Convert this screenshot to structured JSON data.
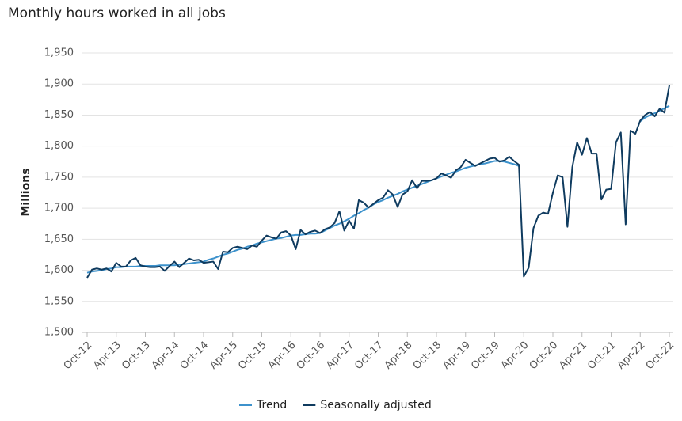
{
  "chart_data": {
    "type": "line",
    "title": "Monthly hours worked in all jobs",
    "y_label": "Millions",
    "categories": [
      "Oct-12",
      null,
      null,
      null,
      null,
      null,
      "Apr-13",
      null,
      null,
      null,
      null,
      null,
      "Oct-13",
      null,
      null,
      null,
      null,
      null,
      "Apr-14",
      null,
      null,
      null,
      null,
      null,
      "Oct-14",
      null,
      null,
      null,
      null,
      null,
      "Apr-15",
      null,
      null,
      null,
      null,
      null,
      "Oct-15",
      null,
      null,
      null,
      null,
      null,
      "Apr-16",
      null,
      null,
      null,
      null,
      null,
      "Oct-16",
      null,
      null,
      null,
      null,
      null,
      "Apr-17",
      null,
      null,
      null,
      null,
      null,
      "Oct-17",
      null,
      null,
      null,
      null,
      null,
      "Apr-18",
      null,
      null,
      null,
      null,
      null,
      "Oct-18",
      null,
      null,
      null,
      null,
      null,
      "Apr-19",
      null,
      null,
      null,
      null,
      null,
      "Oct-19",
      null,
      null,
      null,
      null,
      null,
      "Apr-20",
      null,
      null,
      null,
      null,
      null,
      "Oct-20",
      null,
      null,
      null,
      null,
      null,
      "Apr-21",
      null,
      null,
      null,
      null,
      null,
      "Oct-21",
      null,
      null,
      null,
      null,
      null,
      "Apr-22",
      null,
      null,
      null,
      null,
      null,
      "Oct-22"
    ],
    "series": [
      {
        "name": "Trend",
        "color": "#3d92cc",
        "values": [
          1596,
          1598,
          1599,
          1600,
          1602,
          1603,
          1605,
          1605,
          1606,
          1606,
          1606,
          1607,
          1607,
          1607,
          1607,
          1608,
          1608,
          1608,
          1608,
          1609,
          1610,
          1611,
          1612,
          1613,
          1614,
          1617,
          1619,
          1622,
          1625,
          1627,
          1630,
          1633,
          1635,
          1638,
          1640,
          1643,
          1645,
          1647,
          1649,
          1651,
          1652,
          1654,
          1656,
          1657,
          1657,
          1658,
          1659,
          1659,
          1660,
          1664,
          1668,
          1672,
          1675,
          1679,
          1683,
          1688,
          1692,
          1697,
          1701,
          1706,
          1710,
          1713,
          1717,
          1720,
          1723,
          1727,
          1730,
          1733,
          1736,
          1739,
          1742,
          1745,
          1748,
          1751,
          1754,
          1757,
          1759,
          1762,
          1765,
          1767,
          1769,
          1771,
          1772,
          1774,
          1776,
          1776,
          1775,
          1773,
          1771,
          1768,
          null,
          null,
          null,
          null,
          null,
          null,
          null,
          null,
          null,
          null,
          null,
          null,
          null,
          null,
          null,
          null,
          null,
          null,
          null,
          null,
          null,
          null,
          null,
          null,
          1840,
          1846,
          1850,
          1853,
          1857,
          1861,
          1865
        ]
      },
      {
        "name": "Seasonally adjusted",
        "color": "#0f3b5f",
        "values": [
          1588,
          1601,
          1603,
          1601,
          1603,
          1598,
          1612,
          1606,
          1606,
          1616,
          1620,
          1608,
          1606,
          1605,
          1605,
          1606,
          1599,
          1607,
          1614,
          1605,
          1612,
          1619,
          1616,
          1617,
          1612,
          1613,
          1614,
          1602,
          1630,
          1629,
          1636,
          1638,
          1636,
          1634,
          1640,
          1638,
          1648,
          1656,
          1653,
          1651,
          1661,
          1663,
          1656,
          1634,
          1665,
          1658,
          1662,
          1664,
          1660,
          1666,
          1669,
          1676,
          1695,
          1664,
          1680,
          1667,
          1713,
          1709,
          1701,
          1707,
          1713,
          1717,
          1729,
          1722,
          1702,
          1722,
          1727,
          1745,
          1732,
          1744,
          1744,
          1745,
          1748,
          1756,
          1753,
          1749,
          1761,
          1766,
          1778,
          1773,
          1768,
          1772,
          1776,
          1780,
          1781,
          1775,
          1777,
          1783,
          1776,
          1770,
          1590,
          1604,
          1668,
          1688,
          1693,
          1691,
          1725,
          1753,
          1750,
          1670,
          1766,
          1806,
          1786,
          1813,
          1788,
          1788,
          1714,
          1730,
          1731,
          1806,
          1822,
          1674,
          1825,
          1820,
          1841,
          1850,
          1855,
          1848,
          1860,
          1854,
          1898
        ]
      }
    ],
    "ylim": [
      1500,
      1950
    ],
    "yticks": [
      {
        "value": 1500,
        "label": "1,500"
      },
      {
        "value": 1550,
        "label": "1,550"
      },
      {
        "value": 1600,
        "label": "1,600"
      },
      {
        "value": 1650,
        "label": "1,650"
      },
      {
        "value": 1700,
        "label": "1,700"
      },
      {
        "value": 1750,
        "label": "1,750"
      },
      {
        "value": 1800,
        "label": "1,800"
      },
      {
        "value": 1850,
        "label": "1,850"
      },
      {
        "value": 1900,
        "label": "1,900"
      },
      {
        "value": 1950,
        "label": "1,950"
      }
    ],
    "grid": true,
    "legend": "bottom"
  }
}
